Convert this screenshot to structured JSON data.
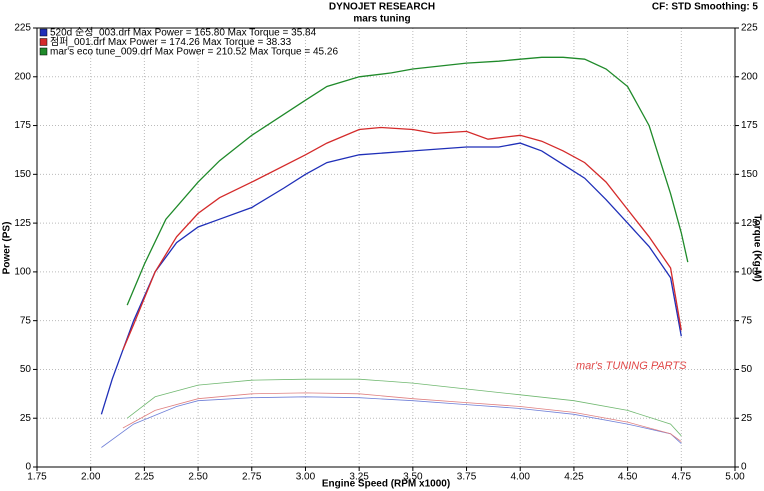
{
  "chart_data": {
    "type": "line",
    "title": "DYNOJET RESEARCH",
    "subtitle": "mars tuning",
    "corner_note": "CF: STD  Smoothing: 5",
    "xlabel": "Engine Speed (RPM x1000)",
    "ylabel": "Power (PS)",
    "y2label": "Torque (Kg-M)",
    "watermark": "mar's TUNING PARTS",
    "xlim": [
      1.75,
      5
    ],
    "xticks": [
      1.75,
      {
        "value": 2,
        "label": "2.00"
      },
      2.25,
      {
        "value": 2.5,
        "label": "2.50"
      },
      2.75,
      {
        "value": 3,
        "label": "3.00"
      },
      3.25,
      {
        "value": 3.5,
        "label": "3.50"
      },
      3.75,
      {
        "value": 4,
        "label": "4.00"
      },
      4.25,
      {
        "value": 4.5,
        "label": "4.50"
      },
      4.75,
      {
        "value": 5,
        "label": "5.00"
      }
    ],
    "ylim": [
      0,
      225
    ],
    "yticks": [
      0,
      25,
      50,
      75,
      100,
      125,
      150,
      175,
      200,
      225
    ],
    "y2lim": [
      0,
      225
    ],
    "y2ticks": [
      0,
      25,
      50,
      75,
      100,
      125,
      150,
      175,
      200,
      225
    ],
    "grid": true,
    "legend": "top-left",
    "series": [
      {
        "name": "520d 순정_003.drf Max Power = 165.80    Max Torque = 35.84",
        "color": "#1f2fb8",
        "width": 1.3,
        "x": [
          2.05,
          2.1,
          2.2,
          2.3,
          2.4,
          2.5,
          2.6,
          2.75,
          2.9,
          3,
          3.1,
          3.25,
          3.5,
          3.75,
          3.9,
          4,
          4.1,
          4.2,
          4.3,
          4.4,
          4.5,
          4.6,
          4.7,
          4.75
        ],
        "values": [
          27,
          45,
          75,
          100,
          115,
          123,
          127,
          133,
          143,
          150,
          156,
          160,
          162,
          164,
          164,
          166,
          162,
          155,
          148,
          137,
          125,
          113,
          97,
          67
        ]
      },
      {
        "name": "점퍼_001.drf Max Power = 174.26    Max Torque = 38.33",
        "color": "#d42a2a",
        "width": 1.3,
        "x": [
          2.15,
          2.2,
          2.3,
          2.4,
          2.5,
          2.6,
          2.75,
          3,
          3.1,
          3.25,
          3.35,
          3.5,
          3.6,
          3.75,
          3.85,
          4,
          4.1,
          4.2,
          4.3,
          4.4,
          4.5,
          4.6,
          4.7,
          4.75
        ],
        "values": [
          60,
          73,
          100,
          118,
          130,
          138,
          146,
          160,
          166,
          173,
          174,
          173,
          171,
          172,
          168,
          170,
          167,
          162,
          156,
          146,
          132,
          118,
          102,
          70
        ]
      },
      {
        "name": "mar's eco tune_009.drf Max Power = 210.52    Max Torque = 45.26",
        "color": "#1f8a2a",
        "width": 1.3,
        "x": [
          2.17,
          2.25,
          2.35,
          2.5,
          2.6,
          2.75,
          3,
          3.1,
          3.25,
          3.4,
          3.5,
          3.75,
          3.9,
          4,
          4.1,
          4.2,
          4.3,
          4.4,
          4.5,
          4.6,
          4.7,
          4.75,
          4.78
        ],
        "values": [
          83,
          104,
          127,
          146,
          157,
          170,
          188,
          195,
          200,
          202,
          204,
          207,
          208,
          209,
          210,
          210,
          209,
          204,
          195,
          175,
          140,
          120,
          105
        ]
      },
      {
        "color": "#7080d8",
        "width": 0.8,
        "axis": "y2",
        "x": [
          2.05,
          2.2,
          2.4,
          2.5,
          2.75,
          3,
          3.25,
          3.5,
          3.75,
          4,
          4.25,
          4.5,
          4.7,
          4.75
        ],
        "values": [
          10,
          22,
          31,
          34,
          35.5,
          36,
          35.5,
          34,
          32,
          30,
          27,
          22,
          17,
          12
        ]
      },
      {
        "color": "#e08080",
        "width": 0.8,
        "axis": "y2",
        "x": [
          2.15,
          2.3,
          2.5,
          2.75,
          3,
          3.25,
          3.5,
          3.75,
          4,
          4.25,
          4.5,
          4.7,
          4.75
        ],
        "values": [
          20,
          29,
          35,
          37.5,
          38,
          37.5,
          35,
          33,
          31,
          28,
          23,
          17,
          13
        ]
      },
      {
        "color": "#70b870",
        "width": 0.8,
        "axis": "y2",
        "x": [
          2.17,
          2.3,
          2.5,
          2.75,
          3,
          3.25,
          3.5,
          3.75,
          4,
          4.25,
          4.5,
          4.7,
          4.75
        ],
        "values": [
          25,
          36,
          42,
          44.5,
          45,
          45,
          43,
          40,
          37,
          34,
          29,
          22,
          16
        ]
      }
    ]
  }
}
